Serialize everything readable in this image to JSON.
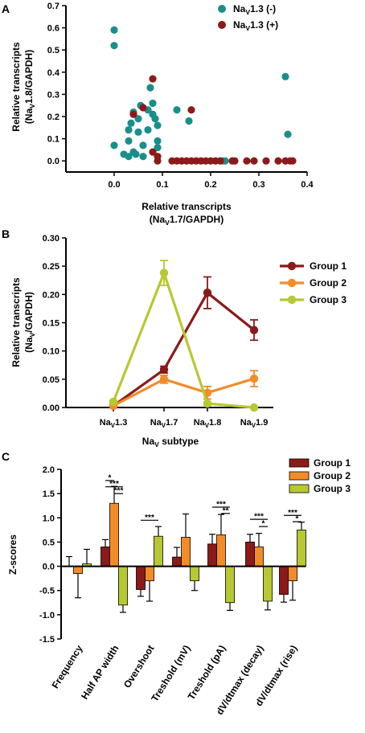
{
  "chart_data": [
    {
      "panel": "A",
      "type": "scatter",
      "xlabel": [
        "Relative transcripts",
        "(NaV1.7/GAPDH)"
      ],
      "ylabel": [
        "Relative transcripts",
        "(NaV1.8/GAPDH)"
      ],
      "xlim": [
        -0.1,
        0.4
      ],
      "ylim": [
        -0.05,
        0.7
      ],
      "xticks": [
        "0.0",
        "0.1",
        "0.2",
        "0.3",
        "0.4"
      ],
      "yticks": [
        "0.0",
        "0.1",
        "0.2",
        "0.3",
        "0.4",
        "0.5",
        "0.6",
        "0.7"
      ],
      "legend": "top-right",
      "series": [
        {
          "name": "NaV1.3 (-)",
          "color": "#1a8f8a",
          "points": [
            [
              0.0,
              0.59
            ],
            [
              0.0,
              0.52
            ],
            [
              0.0,
              0.07
            ],
            [
              0.02,
              0.03
            ],
            [
              0.03,
              0.02
            ],
            [
              0.03,
              0.09
            ],
            [
              0.03,
              0.14
            ],
            [
              0.035,
              0.17
            ],
            [
              0.04,
              0.22
            ],
            [
              0.04,
              0.04
            ],
            [
              0.045,
              0.03
            ],
            [
              0.05,
              0.13
            ],
            [
              0.05,
              0.19
            ],
            [
              0.055,
              0.25
            ],
            [
              0.06,
              0.02
            ],
            [
              0.06,
              0.07
            ],
            [
              0.07,
              0.14
            ],
            [
              0.07,
              0.23
            ],
            [
              0.075,
              0.33
            ],
            [
              0.08,
              0.21
            ],
            [
              0.08,
              0.26
            ],
            [
              0.085,
              0.19
            ],
            [
              0.09,
              0.06
            ],
            [
              0.09,
              0.09
            ],
            [
              0.09,
              0.16
            ],
            [
              0.13,
              0.23
            ],
            [
              0.155,
              0.18
            ],
            [
              0.225,
              0.0
            ],
            [
              0.23,
              0.0
            ],
            [
              0.355,
              0.38
            ],
            [
              0.36,
              0.12
            ]
          ]
        },
        {
          "name": "NaV1.3 (+)",
          "color": "#8b1a1a",
          "points": [
            [
              0.04,
              0.21
            ],
            [
              0.06,
              0.24
            ],
            [
              0.08,
              0.37
            ],
            [
              0.08,
              0.04
            ],
            [
              0.09,
              0.02
            ],
            [
              0.09,
              0.0
            ],
            [
              0.12,
              0.0
            ],
            [
              0.13,
              0.0
            ],
            [
              0.14,
              0.0
            ],
            [
              0.15,
              0.0
            ],
            [
              0.16,
              0.23
            ],
            [
              0.16,
              0.0
            ],
            [
              0.17,
              0.0
            ],
            [
              0.18,
              0.0
            ],
            [
              0.19,
              0.0
            ],
            [
              0.2,
              0.0
            ],
            [
              0.21,
              0.0
            ],
            [
              0.22,
              0.0
            ],
            [
              0.245,
              0.0
            ],
            [
              0.25,
              0.0
            ],
            [
              0.275,
              0.0
            ],
            [
              0.29,
              0.0
            ],
            [
              0.315,
              0.0
            ],
            [
              0.34,
              0.0
            ],
            [
              0.355,
              0.0
            ],
            [
              0.365,
              0.0
            ],
            [
              0.37,
              0.0
            ]
          ]
        }
      ]
    },
    {
      "panel": "B",
      "type": "line",
      "categories": [
        "NaV1.3",
        "NaV1.7",
        "NaV1.8",
        "NaV1.9"
      ],
      "xlabel": "NaV subtype",
      "ylabel": [
        "Relative transcripts",
        "(NaV/GAPDH)"
      ],
      "ylim": [
        0,
        0.3
      ],
      "yticks": [
        "0.00",
        "0.05",
        "0.10",
        "0.15",
        "0.20",
        "0.25",
        "0.30"
      ],
      "legend": "top-right",
      "series": [
        {
          "name": "Group 1",
          "color": "#8b1a1a",
          "values": [
            0.003,
            0.067,
            0.203,
            0.137
          ],
          "errors": [
            0.002,
            0.006,
            0.028,
            0.018
          ]
        },
        {
          "name": "Group 2",
          "color": "#f28c28",
          "values": [
            0.003,
            0.05,
            0.026,
            0.051
          ],
          "errors": [
            0.002,
            0.007,
            0.011,
            0.014
          ]
        },
        {
          "name": "Group 3",
          "color": "#b8c832",
          "values": [
            0.01,
            0.238,
            0.007,
            0.0
          ],
          "errors": [
            0.002,
            0.022,
            0.003,
            0.001
          ]
        }
      ]
    },
    {
      "panel": "C",
      "type": "bar",
      "ylabel": "Z-scores",
      "ylim": [
        -1.5,
        2.0
      ],
      "yticks": [
        "2.0",
        "1.5",
        "1.0",
        "0.5",
        "0.0",
        "-0.5",
        "-1.0",
        "-1.5"
      ],
      "categories": [
        "Frequency",
        "Half AP width",
        "Overshoot",
        "Treshold (mV)",
        "Treshold (pA)",
        "dV/dtmax (decay)",
        "dV/dtmax (rise)"
      ],
      "legend": "top-right",
      "series": [
        {
          "name": "Group 1",
          "color": "#8b1a1a",
          "values": [
            0.0,
            0.4,
            -0.48,
            0.19,
            0.46,
            0.5,
            -0.58
          ],
          "errors": [
            0.2,
            0.15,
            0.14,
            0.2,
            0.2,
            0.16,
            0.16
          ]
        },
        {
          "name": "Group 2",
          "color": "#f28c28",
          "values": [
            -0.15,
            1.3,
            -0.3,
            0.6,
            0.65,
            0.4,
            -0.3
          ]
        },
        {
          "name": "Group 3",
          "color": "#b8c832",
          "values": [
            0.05,
            -0.8,
            0.62,
            -0.3,
            -0.75,
            -0.72,
            0.75
          ],
          "errors": [
            0.3,
            0.15,
            0.2,
            0.2,
            0.16,
            0.18,
            0.16
          ]
        }
      ],
      "errors_group2": [
        0.5,
        0.35,
        0.42,
        0.48,
        0.42,
        0.28,
        0.4
      ],
      "significance": [
        {
          "label": "*",
          "cat": 1,
          "a": 0,
          "b": 1,
          "level": 1.77
        },
        {
          "label": "***",
          "cat": 1,
          "a": 0,
          "b": 2,
          "level": 1.64
        },
        {
          "label": "***",
          "cat": 1,
          "a": 1,
          "b": 2,
          "level": 1.5
        },
        {
          "label": "***",
          "cat": 2,
          "a": 0,
          "b": 2,
          "level": 0.95
        },
        {
          "label": "***",
          "cat": 4,
          "a": 0,
          "b": 2,
          "level": 1.22
        },
        {
          "label": "**",
          "cat": 4,
          "a": 1,
          "b": 2,
          "level": 1.09
        },
        {
          "label": "***",
          "cat": 5,
          "a": 0,
          "b": 2,
          "level": 0.97
        },
        {
          "label": "*",
          "cat": 5,
          "a": 1,
          "b": 2,
          "level": 0.82
        },
        {
          "label": "***",
          "cat": 6,
          "a": 0,
          "b": 2,
          "level": 1.05
        },
        {
          "label": "*",
          "cat": 6,
          "a": 1,
          "b": 2,
          "level": 0.92
        }
      ]
    }
  ],
  "panel_letters": [
    "A",
    "B",
    "C"
  ]
}
